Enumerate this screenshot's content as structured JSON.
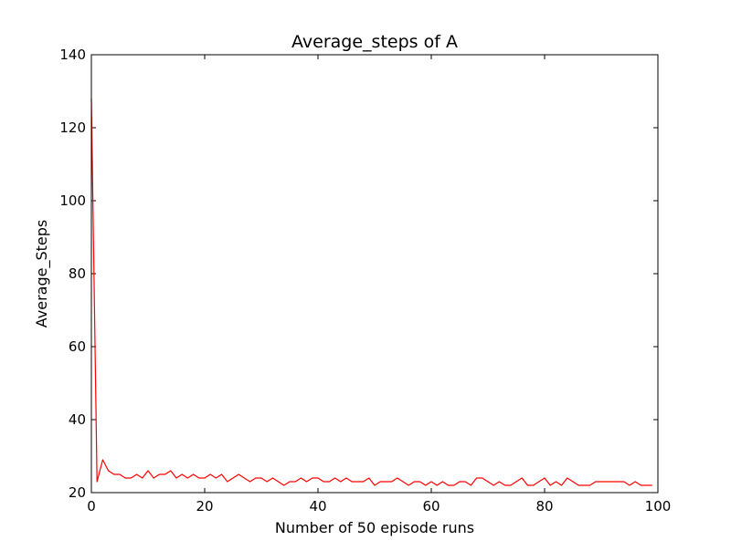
{
  "chart_data": {
    "type": "line",
    "title": "Average_steps of A",
    "xlabel": "Number of 50 episode runs",
    "ylabel": "Average_Steps",
    "xlim": [
      0,
      100
    ],
    "ylim": [
      20,
      140
    ],
    "xticks": [
      0,
      20,
      40,
      60,
      80,
      100
    ],
    "yticks": [
      20,
      40,
      60,
      80,
      100,
      120,
      140
    ],
    "grid": false,
    "legend": "none",
    "series": [
      {
        "color": "#ff0000",
        "x": [
          0,
          1,
          2,
          3,
          4,
          5,
          6,
          7,
          8,
          9,
          10,
          11,
          12,
          13,
          14,
          15,
          16,
          17,
          18,
          19,
          20,
          21,
          22,
          23,
          24,
          25,
          26,
          27,
          28,
          29,
          30,
          31,
          32,
          33,
          34,
          35,
          36,
          37,
          38,
          39,
          40,
          41,
          42,
          43,
          44,
          45,
          46,
          47,
          48,
          49,
          50,
          51,
          52,
          53,
          54,
          55,
          56,
          57,
          58,
          59,
          60,
          61,
          62,
          63,
          64,
          65,
          66,
          67,
          68,
          69,
          70,
          71,
          72,
          73,
          74,
          75,
          76,
          77,
          78,
          79,
          80,
          81,
          82,
          83,
          84,
          85,
          86,
          87,
          88,
          89,
          90,
          91,
          92,
          93,
          94,
          95,
          96,
          97,
          98,
          99
        ],
        "values": [
          128,
          23,
          29,
          26,
          25,
          25,
          24,
          24,
          25,
          24,
          26,
          24,
          25,
          25,
          26,
          24,
          25,
          24,
          25,
          24,
          24,
          25,
          24,
          25,
          23,
          24,
          25,
          24,
          23,
          24,
          24,
          23,
          24,
          23,
          22,
          23,
          23,
          24,
          23,
          24,
          24,
          23,
          23,
          24,
          23,
          24,
          23,
          23,
          23,
          24,
          22,
          23,
          23,
          23,
          24,
          23,
          22,
          23,
          23,
          22,
          23,
          22,
          23,
          22,
          22,
          23,
          23,
          22,
          24,
          24,
          23,
          22,
          23,
          22,
          22,
          23,
          24,
          22,
          22,
          23,
          24,
          22,
          23,
          22,
          24,
          23,
          22,
          22,
          22,
          23,
          23,
          23,
          23,
          23,
          23,
          22,
          23,
          22,
          22,
          22
        ]
      }
    ]
  }
}
